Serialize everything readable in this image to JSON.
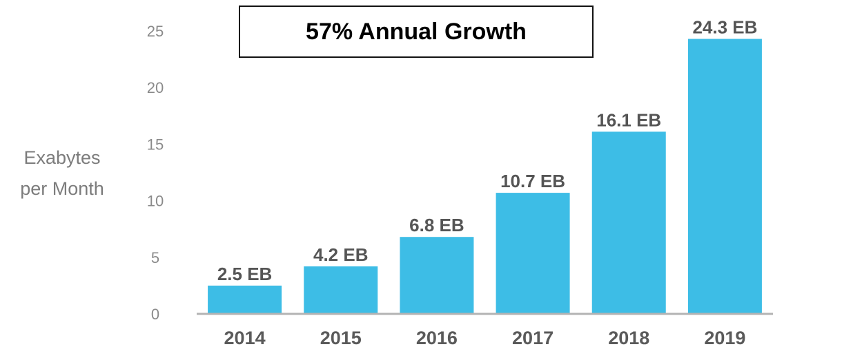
{
  "chart_data": {
    "type": "bar",
    "title": "57% Annual Growth",
    "ylabel": "Exabytes per Month",
    "ylabel_lines": [
      "Exabytes",
      "per Month"
    ],
    "categories": [
      "2014",
      "2015",
      "2016",
      "2017",
      "2018",
      "2019"
    ],
    "values": [
      2.5,
      4.2,
      6.8,
      10.7,
      16.1,
      24.3
    ],
    "data_labels": [
      "2.5 EB",
      "4.2 EB",
      "6.8 EB",
      "10.7 EB",
      "16.1 EB",
      "24.3 EB"
    ],
    "ylim": [
      0,
      25
    ],
    "yticks": [
      0,
      5,
      10,
      15,
      20,
      25
    ],
    "grid": false,
    "bar_color": "#3dbde6",
    "axis_color": "#b3b3b3"
  }
}
